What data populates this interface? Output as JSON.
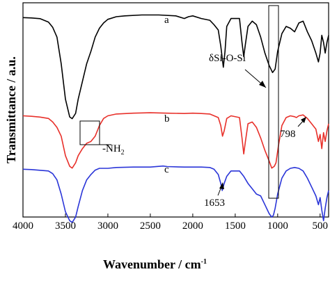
{
  "chart_data": {
    "type": "line",
    "xlabel": "Wavenumber / cm",
    "xlabel_superscript": "-1",
    "ylabel": "Transmittance / a.u.",
    "xlim": [
      4000,
      400
    ],
    "x_reversed": true,
    "xticks": [
      4000,
      3500,
      3000,
      2500,
      2000,
      1500,
      1000,
      500
    ],
    "yticks_shown": false,
    "grid": false,
    "series": [
      {
        "name": "a",
        "color": "#000000",
        "points": [
          [
            4000,
            6.0
          ],
          [
            3900,
            6.2
          ],
          [
            3800,
            6.6
          ],
          [
            3700,
            8.5
          ],
          [
            3650,
            11.5
          ],
          [
            3600,
            17
          ],
          [
            3550,
            32
          ],
          [
            3500,
            52
          ],
          [
            3450,
            62
          ],
          [
            3420,
            63
          ],
          [
            3380,
            60
          ],
          [
            3350,
            52
          ],
          [
            3300,
            42
          ],
          [
            3250,
            32
          ],
          [
            3200,
            25
          ],
          [
            3150,
            17
          ],
          [
            3100,
            12
          ],
          [
            3050,
            9
          ],
          [
            3000,
            7
          ],
          [
            2900,
            5.5
          ],
          [
            2800,
            5
          ],
          [
            2600,
            4.5
          ],
          [
            2400,
            4.5
          ],
          [
            2200,
            5
          ],
          [
            2100,
            6.5
          ],
          [
            2050,
            5.5
          ],
          [
            2000,
            5
          ],
          [
            1900,
            6.5
          ],
          [
            1800,
            7.5
          ],
          [
            1750,
            10
          ],
          [
            1700,
            13
          ],
          [
            1670,
            22
          ],
          [
            1640,
            34
          ],
          [
            1620,
            25
          ],
          [
            1600,
            11
          ],
          [
            1550,
            6.5
          ],
          [
            1450,
            6.5
          ],
          [
            1420,
            20
          ],
          [
            1400,
            28
          ],
          [
            1380,
            21
          ],
          [
            1350,
            11
          ],
          [
            1300,
            8
          ],
          [
            1250,
            10
          ],
          [
            1200,
            17
          ],
          [
            1150,
            26
          ],
          [
            1100,
            33
          ],
          [
            1060,
            37
          ],
          [
            1030,
            35
          ],
          [
            1000,
            25
          ],
          [
            950,
            15
          ],
          [
            900,
            11
          ],
          [
            850,
            12
          ],
          [
            800,
            14
          ],
          [
            750,
            9
          ],
          [
            700,
            8
          ],
          [
            650,
            14
          ],
          [
            600,
            19
          ],
          [
            550,
            26
          ],
          [
            520,
            31
          ],
          [
            500,
            26
          ],
          [
            480,
            16
          ],
          [
            460,
            20
          ],
          [
            440,
            26
          ],
          [
            420,
            20
          ],
          [
            400,
            16
          ]
        ]
      },
      {
        "name": "b",
        "color": "#e8302a",
        "points": [
          [
            4000,
            4.5
          ],
          [
            3900,
            4.8
          ],
          [
            3800,
            5.2
          ],
          [
            3700,
            6.0
          ],
          [
            3650,
            8.0
          ],
          [
            3600,
            11
          ],
          [
            3550,
            16
          ],
          [
            3500,
            27
          ],
          [
            3450,
            33
          ],
          [
            3420,
            34
          ],
          [
            3380,
            31
          ],
          [
            3350,
            27
          ],
          [
            3300,
            23
          ],
          [
            3250,
            20
          ],
          [
            3200,
            19
          ],
          [
            3150,
            16
          ],
          [
            3100,
            10
          ],
          [
            3050,
            6
          ],
          [
            3000,
            4.5
          ],
          [
            2900,
            3.5
          ],
          [
            2700,
            3.0
          ],
          [
            2500,
            2.8
          ],
          [
            2300,
            3.0
          ],
          [
            2100,
            3.2
          ],
          [
            2000,
            3.0
          ],
          [
            1900,
            3.2
          ],
          [
            1800,
            3.5
          ],
          [
            1700,
            5.5
          ],
          [
            1670,
            10
          ],
          [
            1650,
            16
          ],
          [
            1630,
            13
          ],
          [
            1600,
            6
          ],
          [
            1550,
            4.5
          ],
          [
            1450,
            5.5
          ],
          [
            1420,
            17
          ],
          [
            1400,
            26
          ],
          [
            1380,
            19
          ],
          [
            1350,
            9
          ],
          [
            1300,
            8
          ],
          [
            1250,
            11
          ],
          [
            1200,
            17
          ],
          [
            1150,
            24
          ],
          [
            1100,
            30
          ],
          [
            1070,
            34
          ],
          [
            1040,
            33
          ],
          [
            1020,
            31
          ],
          [
            990,
            21
          ],
          [
            950,
            10
          ],
          [
            900,
            5.5
          ],
          [
            850,
            4.5
          ],
          [
            800,
            5
          ],
          [
            780,
            5.5
          ],
          [
            750,
            4.5
          ],
          [
            700,
            4
          ],
          [
            650,
            6
          ],
          [
            600,
            9
          ],
          [
            550,
            12
          ],
          [
            520,
            19
          ],
          [
            500,
            15
          ],
          [
            480,
            23
          ],
          [
            460,
            14
          ],
          [
            440,
            19
          ],
          [
            420,
            13
          ],
          [
            400,
            9
          ]
        ]
      },
      {
        "name": "c",
        "color": "#2a35d8",
        "points": [
          [
            4000,
            6.0
          ],
          [
            3900,
            6.2
          ],
          [
            3800,
            6.6
          ],
          [
            3700,
            7.0
          ],
          [
            3650,
            8.5
          ],
          [
            3600,
            12
          ],
          [
            3550,
            20
          ],
          [
            3500,
            30
          ],
          [
            3450,
            35
          ],
          [
            3420,
            36
          ],
          [
            3380,
            33
          ],
          [
            3350,
            27
          ],
          [
            3300,
            18
          ],
          [
            3250,
            12
          ],
          [
            3200,
            9
          ],
          [
            3150,
            6.5
          ],
          [
            3100,
            5.5
          ],
          [
            3000,
            5.5
          ],
          [
            2900,
            5
          ],
          [
            2700,
            4.8
          ],
          [
            2500,
            4.8
          ],
          [
            2350,
            4.2
          ],
          [
            2300,
            4.5
          ],
          [
            2100,
            4.8
          ],
          [
            1900,
            4.8
          ],
          [
            1800,
            5
          ],
          [
            1750,
            6
          ],
          [
            1700,
            9
          ],
          [
            1670,
            14
          ],
          [
            1653,
            18
          ],
          [
            1630,
            14
          ],
          [
            1600,
            10
          ],
          [
            1550,
            7
          ],
          [
            1500,
            7
          ],
          [
            1450,
            7
          ],
          [
            1400,
            10
          ],
          [
            1350,
            14
          ],
          [
            1300,
            17
          ],
          [
            1250,
            20
          ],
          [
            1200,
            21
          ],
          [
            1150,
            26
          ],
          [
            1100,
            31
          ],
          [
            1070,
            33
          ],
          [
            1050,
            32
          ],
          [
            1030,
            28
          ],
          [
            1000,
            20
          ],
          [
            950,
            11
          ],
          [
            900,
            7
          ],
          [
            850,
            5.5
          ],
          [
            800,
            5
          ],
          [
            750,
            5.5
          ],
          [
            700,
            7
          ],
          [
            650,
            11
          ],
          [
            600,
            16
          ],
          [
            550,
            21
          ],
          [
            520,
            26
          ],
          [
            500,
            22
          ],
          [
            480,
            29
          ],
          [
            460,
            35
          ],
          [
            440,
            28
          ],
          [
            420,
            22
          ],
          [
            400,
            18
          ]
        ]
      }
    ],
    "annotations": {
      "delta_label": "δSi-O-Si",
      "nh2_label": "-NH",
      "nh2_sub": "2",
      "peak_798": "798",
      "peak_1653": "1653"
    }
  }
}
